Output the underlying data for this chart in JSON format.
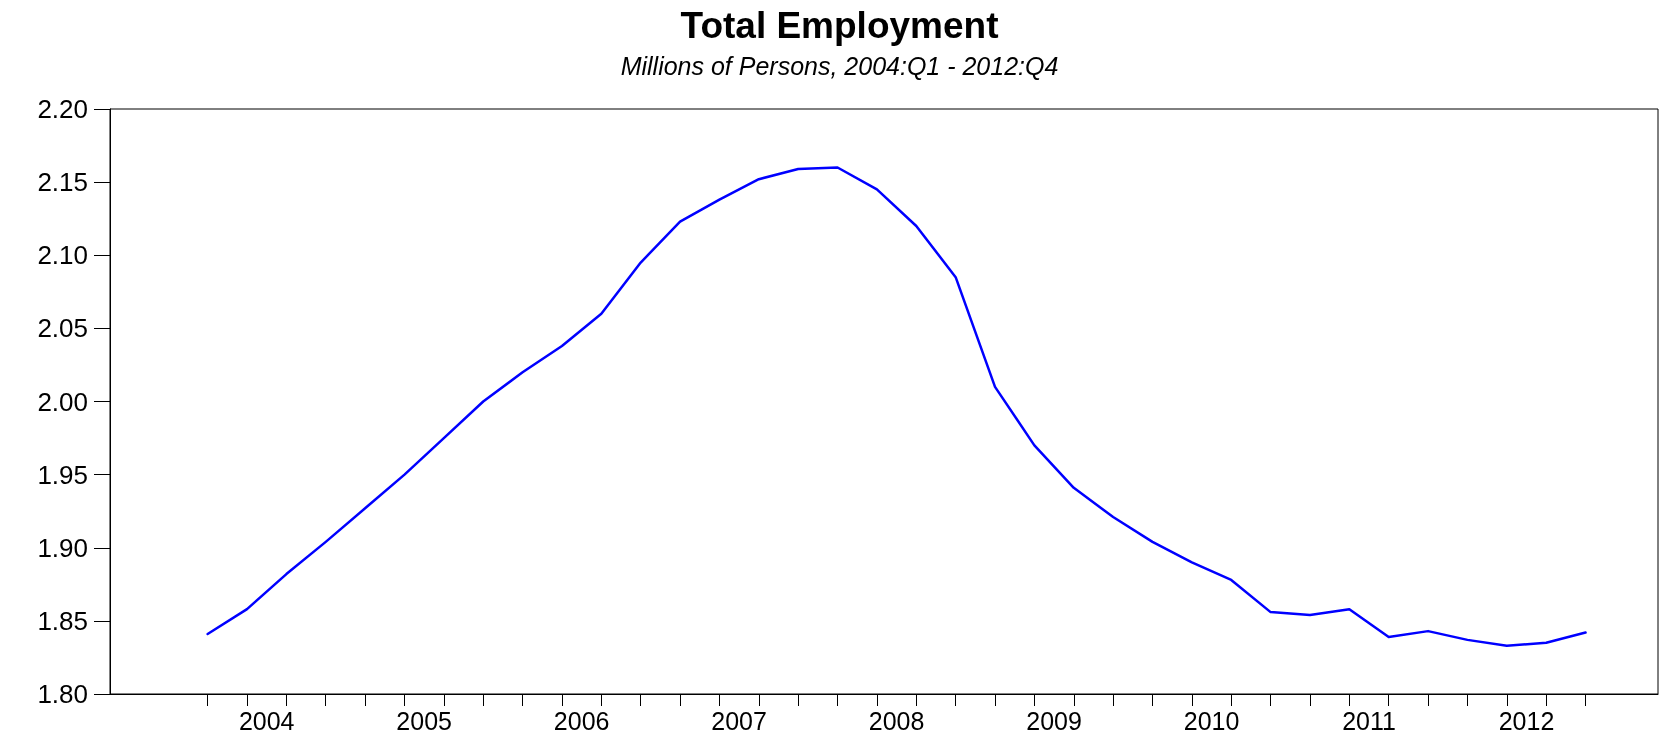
{
  "chart_data": {
    "type": "line",
    "title": "Total Employment",
    "subtitle": "Millions of Persons, 2004:Q1 - 2012:Q4",
    "x": [
      2004,
      2004.25,
      2004.5,
      2004.75,
      2005,
      2005.25,
      2005.5,
      2005.75,
      2006,
      2006.25,
      2006.5,
      2006.75,
      2007,
      2007.25,
      2007.5,
      2007.75,
      2008,
      2008.25,
      2008.5,
      2008.75,
      2009,
      2009.25,
      2009.5,
      2009.75,
      2010,
      2010.25,
      2010.5,
      2010.75,
      2011,
      2011.25,
      2011.5,
      2011.75,
      2012,
      2012.25,
      2012.5,
      2012.75
    ],
    "series": [
      {
        "color": "#0000ff",
        "values": [
          1.841,
          1.858,
          1.882,
          1.904,
          1.927,
          1.95,
          1.975,
          2.0,
          2.02,
          2.038,
          2.06,
          2.095,
          2.123,
          2.138,
          2.152,
          2.159,
          2.16,
          2.145,
          2.12,
          2.085,
          2.01,
          1.97,
          1.941,
          1.921,
          1.904,
          1.89,
          1.878,
          1.856,
          1.854,
          1.858,
          1.839,
          1.843,
          1.837,
          1.833,
          1.835,
          1.842
        ]
      }
    ],
    "xlim": [
      2003.38,
      2013.21
    ],
    "xticks": [
      {
        "value": 2004,
        "label": null
      },
      {
        "value": 2004.25,
        "label": null
      },
      {
        "value": 2004.5,
        "label": null
      },
      {
        "value": 2004.75,
        "label": null
      },
      {
        "value": 2005,
        "label": null
      },
      {
        "value": 2005.25,
        "label": null
      },
      {
        "value": 2005.5,
        "label": null
      },
      {
        "value": 2005.75,
        "label": null
      },
      {
        "value": 2006,
        "label": null
      },
      {
        "value": 2006.25,
        "label": null
      },
      {
        "value": 2006.5,
        "label": null
      },
      {
        "value": 2006.75,
        "label": null
      },
      {
        "value": 2007,
        "label": null
      },
      {
        "value": 2007.25,
        "label": null
      },
      {
        "value": 2007.5,
        "label": null
      },
      {
        "value": 2007.75,
        "label": null
      },
      {
        "value": 2008,
        "label": null
      },
      {
        "value": 2008.25,
        "label": null
      },
      {
        "value": 2008.5,
        "label": null
      },
      {
        "value": 2008.75,
        "label": null
      },
      {
        "value": 2009,
        "label": null
      },
      {
        "value": 2009.25,
        "label": null
      },
      {
        "value": 2009.5,
        "label": null
      },
      {
        "value": 2009.75,
        "label": null
      },
      {
        "value": 2010,
        "label": null
      },
      {
        "value": 2010.25,
        "label": null
      },
      {
        "value": 2010.5,
        "label": null
      },
      {
        "value": 2010.75,
        "label": null
      },
      {
        "value": 2011,
        "label": null
      },
      {
        "value": 2011.25,
        "label": null
      },
      {
        "value": 2011.5,
        "label": null
      },
      {
        "value": 2011.75,
        "label": null
      },
      {
        "value": 2012,
        "label": null
      },
      {
        "value": 2012.25,
        "label": null
      },
      {
        "value": 2012.5,
        "label": null
      },
      {
        "value": 2012.75,
        "label": null
      },
      {
        "value": 2004.375,
        "label": "2004"
      },
      {
        "value": 2005.375,
        "label": "2005"
      },
      {
        "value": 2006.375,
        "label": "2006"
      },
      {
        "value": 2007.375,
        "label": "2007"
      },
      {
        "value": 2008.375,
        "label": "2008"
      },
      {
        "value": 2009.375,
        "label": "2009"
      },
      {
        "value": 2010.375,
        "label": "2010"
      },
      {
        "value": 2011.375,
        "label": "2011"
      },
      {
        "value": 2012.375,
        "label": "2012"
      }
    ],
    "ylim": [
      1.8,
      2.2
    ],
    "yticks": [
      {
        "value": 1.8,
        "label": "1.80"
      },
      {
        "value": 1.85,
        "label": "1.85"
      },
      {
        "value": 1.9,
        "label": "1.90"
      },
      {
        "value": 1.95,
        "label": "1.95"
      },
      {
        "value": 2.0,
        "label": "2.00"
      },
      {
        "value": 2.05,
        "label": "2.05"
      },
      {
        "value": 2.1,
        "label": "2.10"
      },
      {
        "value": 2.15,
        "label": "2.15"
      },
      {
        "value": 2.2,
        "label": "2.20"
      }
    ],
    "grid": false,
    "marker": "none",
    "line_style": "solid"
  }
}
